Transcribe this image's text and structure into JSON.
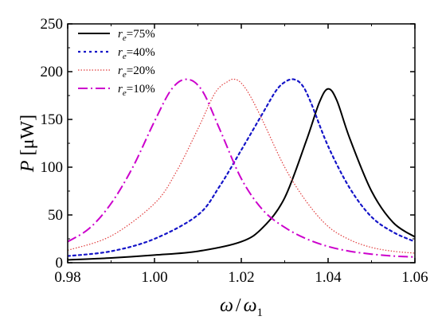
{
  "chart_data": {
    "type": "line",
    "title": "",
    "xlabel": "ω / ω₁",
    "xlabel_parts": {
      "num": "ω",
      "slash": "/",
      "den": "ω",
      "den_sub": "1"
    },
    "ylabel": "P [μW]",
    "ylabel_parts": {
      "symbol": "P",
      "unit": " [μW]"
    },
    "xlim": [
      0.98,
      1.06
    ],
    "ylim": [
      0,
      250
    ],
    "xticks": [
      0.98,
      1.0,
      1.02,
      1.04,
      1.06
    ],
    "xtick_labels": [
      "0.98",
      "1.00",
      "1.02",
      "1.04",
      "1.06"
    ],
    "yticks": [
      0,
      50,
      100,
      150,
      200,
      250
    ],
    "ytick_labels": [
      "0",
      "50",
      "100",
      "150",
      "200",
      "250"
    ],
    "grid": false,
    "legend_position": "top-left",
    "series": [
      {
        "name": "r_e=75%",
        "legend_parts": {
          "r": "r",
          "sub": "e",
          "rest": "=75%"
        },
        "color": "#000000",
        "dash": "solid",
        "x": [
          0.98,
          0.99,
          1.0,
          1.01,
          1.02,
          1.025,
          1.03,
          1.035,
          1.038,
          1.04,
          1.042,
          1.045,
          1.05,
          1.055,
          1.06
        ],
        "y": [
          3,
          5,
          8,
          12,
          22,
          37,
          68,
          128,
          168,
          182,
          170,
          130,
          75,
          42,
          27
        ]
      },
      {
        "name": "r_e=40%",
        "legend_parts": {
          "r": "r",
          "sub": "e",
          "rest": "=40%"
        },
        "color": "#1515c8",
        "dash": "dot",
        "x": [
          0.98,
          0.99,
          1.0,
          1.01,
          1.015,
          1.02,
          1.025,
          1.028,
          1.03,
          1.032,
          1.034,
          1.036,
          1.04,
          1.045,
          1.05,
          1.055,
          1.06
        ],
        "y": [
          7,
          12,
          25,
          50,
          80,
          118,
          157,
          180,
          189,
          192,
          186,
          168,
          122,
          78,
          48,
          32,
          22
        ]
      },
      {
        "name": "r_e=20%",
        "legend_parts": {
          "r": "r",
          "sub": "e",
          "rest": "=20%"
        },
        "color": "#e03c3c",
        "dash": "dot-fine",
        "x": [
          0.98,
          0.99,
          1.0,
          1.005,
          1.01,
          1.014,
          1.017,
          1.0185,
          1.02,
          1.022,
          1.025,
          1.03,
          1.035,
          1.04,
          1.045,
          1.05,
          1.055,
          1.06
        ],
        "y": [
          13,
          28,
          62,
          95,
          140,
          178,
          190,
          192,
          188,
          175,
          148,
          100,
          64,
          38,
          24,
          16,
          12,
          10
        ]
      },
      {
        "name": "r_e=10%",
        "legend_parts": {
          "r": "r",
          "sub": "e",
          "rest": "=10%"
        },
        "color": "#cc00cc",
        "dash": "dashdot",
        "x": [
          0.98,
          0.985,
          0.99,
          0.995,
          1.0,
          1.004,
          1.0075,
          1.011,
          1.015,
          1.02,
          1.025,
          1.03,
          1.035,
          1.04,
          1.045,
          1.05,
          1.055,
          1.06
        ],
        "y": [
          22,
          36,
          62,
          100,
          148,
          182,
          192,
          180,
          140,
          88,
          55,
          37,
          25,
          17,
          12,
          9,
          7,
          6
        ]
      }
    ]
  }
}
